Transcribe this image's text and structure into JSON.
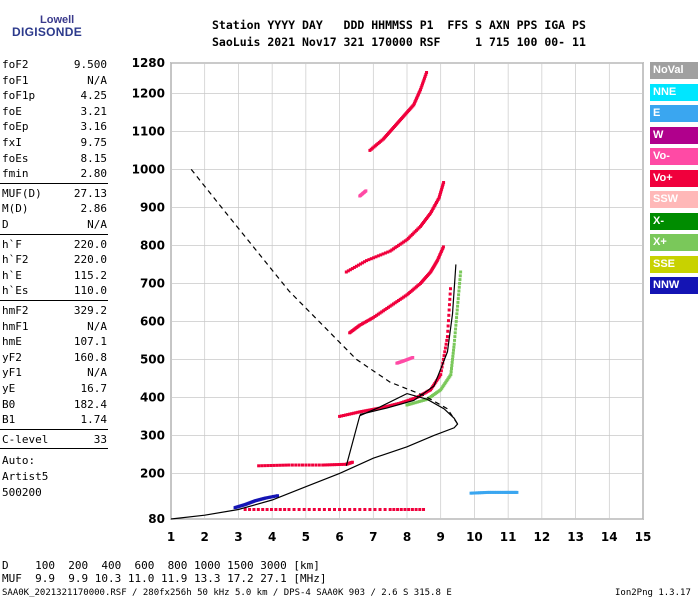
{
  "logo": {
    "top": "Lowell",
    "bottom": "DIGISONDE"
  },
  "header": {
    "line1": "Station YYYY DAY   DDD HHMMSS P1  FFS S AXN PPS IGA PS",
    "line2": "SaoLuis 2021 Nov17 321 170000 RSF     1 715 100 00- 11"
  },
  "params_group1": [
    {
      "k": "foF2",
      "v": "9.500"
    },
    {
      "k": "foF1",
      "v": "N/A"
    },
    {
      "k": "foF1p",
      "v": "4.25"
    },
    {
      "k": "foE",
      "v": "3.21"
    },
    {
      "k": "foEp",
      "v": "3.16"
    },
    {
      "k": "fxI",
      "v": "9.75"
    },
    {
      "k": "foEs",
      "v": "8.15"
    },
    {
      "k": "fmin",
      "v": "2.80"
    }
  ],
  "params_group2": [
    {
      "k": "MUF(D)",
      "v": "27.13"
    },
    {
      "k": "M(D)",
      "v": "2.86"
    },
    {
      "k": "D",
      "v": "N/A"
    }
  ],
  "params_group3": [
    {
      "k": "h`F",
      "v": "220.0"
    },
    {
      "k": "h`F2",
      "v": "220.0"
    },
    {
      "k": "h`E",
      "v": "115.2"
    },
    {
      "k": "h`Es",
      "v": "110.0"
    }
  ],
  "params_group4": [
    {
      "k": "hmF2",
      "v": "329.2"
    },
    {
      "k": "hmF1",
      "v": "N/A"
    },
    {
      "k": "hmE",
      "v": "107.1"
    },
    {
      "k": "yF2",
      "v": "160.8"
    },
    {
      "k": "yF1",
      "v": "N/A"
    },
    {
      "k": "yE",
      "v": "16.7"
    },
    {
      "k": "B0",
      "v": "182.4"
    },
    {
      "k": "B1",
      "v": "1.74"
    }
  ],
  "clevel": {
    "k": "C-level",
    "v": "33"
  },
  "auto": [
    "Auto:",
    "Artist5",
    "500200"
  ],
  "legend": [
    {
      "label": "NoVal",
      "color": "#a0a0a0"
    },
    {
      "label": "NNE",
      "color": "#00e6ff"
    },
    {
      "label": "E",
      "color": "#3aa6f0"
    },
    {
      "label": "W",
      "color": "#b0008c"
    },
    {
      "label": "Vo-",
      "color": "#ff4aa5"
    },
    {
      "label": "Vo+",
      "color": "#f0003c"
    },
    {
      "label": "SSW",
      "color": "#ffb8b8"
    },
    {
      "label": "X-",
      "color": "#008c00"
    },
    {
      "label": "X+",
      "color": "#7ac85a"
    },
    {
      "label": "SSE",
      "color": "#c8d200"
    },
    {
      "label": "NNW",
      "color": "#1414b4"
    }
  ],
  "muf_table": {
    "line1": "D    100  200  400  600  800 1000 1500 3000 [km]",
    "line2": "MUF  9.9  9.9 10.3 11.0 11.9 13.3 17.2 27.1 [MHz]"
  },
  "footer": {
    "left": "SAA0K_2021321170000.RSF / 280fx256h 50 kHz 5.0 km / DPS-4 SAA0K 903 / 2.6 S 315.8 E",
    "right": "Ion2Png 1.3.17"
  },
  "chart_data": {
    "type": "scatter",
    "xlim": [
      1,
      15
    ],
    "ylim": [
      80,
      1280
    ],
    "x_ticks": [
      1,
      2,
      3,
      4,
      5,
      6,
      7,
      8,
      9,
      10,
      11,
      12,
      13,
      14,
      15
    ],
    "y_ticks": [
      80,
      200,
      300,
      400,
      500,
      600,
      700,
      800,
      900,
      1000,
      1100,
      1200,
      1280
    ],
    "grid": true,
    "series": [
      {
        "color": "#f0003c",
        "points": [
          [
            6.3,
            570
          ],
          [
            6.6,
            590
          ],
          [
            7.0,
            610
          ],
          [
            7.5,
            640
          ],
          [
            8.0,
            670
          ],
          [
            8.4,
            700
          ],
          [
            8.7,
            730
          ],
          [
            8.9,
            760
          ],
          [
            9.1,
            800
          ]
        ]
      },
      {
        "color": "#f0003c",
        "points": [
          [
            6.2,
            730
          ],
          [
            6.8,
            760
          ],
          [
            7.5,
            785
          ],
          [
            8.0,
            815
          ],
          [
            8.4,
            850
          ],
          [
            8.7,
            885
          ],
          [
            8.95,
            925
          ],
          [
            9.1,
            970
          ]
        ]
      },
      {
        "color": "#f0003c",
        "points": [
          [
            6.9,
            1050
          ],
          [
            7.3,
            1080
          ],
          [
            7.6,
            1110
          ],
          [
            7.9,
            1140
          ],
          [
            8.2,
            1170
          ],
          [
            8.4,
            1210
          ],
          [
            8.6,
            1260
          ]
        ]
      },
      {
        "color": "#f0003c",
        "points": [
          [
            6.0,
            350
          ],
          [
            6.6,
            362
          ],
          [
            7.2,
            372
          ],
          [
            7.8,
            385
          ],
          [
            8.3,
            400
          ],
          [
            8.7,
            420
          ],
          [
            9.0,
            460
          ],
          [
            9.2,
            560
          ],
          [
            9.3,
            700
          ]
        ]
      },
      {
        "color": "#f0003c",
        "points": [
          [
            3.6,
            220
          ],
          [
            4.5,
            222
          ],
          [
            5.5,
            222
          ],
          [
            6.2,
            224
          ],
          [
            6.4,
            230
          ]
        ]
      },
      {
        "color": "#f0003c",
        "points": [
          [
            3.2,
            105
          ],
          [
            4.5,
            105
          ],
          [
            6.0,
            105
          ],
          [
            7.5,
            105
          ],
          [
            8.6,
            105
          ]
        ]
      },
      {
        "color": "#7ac85a",
        "points": [
          [
            8.0,
            380
          ],
          [
            8.6,
            395
          ],
          [
            9.0,
            420
          ],
          [
            9.3,
            460
          ],
          [
            9.4,
            540
          ],
          [
            9.5,
            640
          ],
          [
            9.6,
            740
          ]
        ]
      },
      {
        "color": "#1414b4",
        "points": [
          [
            2.9,
            110
          ],
          [
            3.2,
            118
          ],
          [
            3.5,
            128
          ],
          [
            3.8,
            135
          ],
          [
            4.2,
            142
          ]
        ]
      },
      {
        "color": "#3aa6f0",
        "points": [
          [
            9.9,
            148
          ],
          [
            10.4,
            150
          ],
          [
            10.9,
            150
          ],
          [
            11.3,
            150
          ]
        ]
      },
      {
        "color": "#ff4aa5",
        "points": [
          [
            7.7,
            490
          ],
          [
            7.9,
            496
          ],
          [
            8.2,
            506
          ]
        ]
      },
      {
        "color": "#ff4aa5",
        "points": [
          [
            6.6,
            930
          ],
          [
            6.8,
            945
          ]
        ]
      }
    ],
    "profile_solid": [
      [
        1,
        80
      ],
      [
        2,
        90
      ],
      [
        3,
        105
      ],
      [
        4,
        130
      ],
      [
        5,
        165
      ],
      [
        6,
        200
      ],
      [
        7,
        240
      ],
      [
        8,
        270
      ],
      [
        8.8,
        300
      ],
      [
        9.4,
        320
      ],
      [
        9.5,
        330
      ],
      [
        9.4,
        345
      ],
      [
        9.1,
        370
      ],
      [
        8.6,
        395
      ],
      [
        8.0,
        410
      ],
      [
        7.2,
        375
      ],
      [
        6.6,
        352
      ],
      [
        6.2,
        220
      ]
    ],
    "profile_solid2": [
      [
        6.6,
        355
      ],
      [
        7.4,
        372
      ],
      [
        8.2,
        392
      ],
      [
        8.8,
        430
      ],
      [
        9.2,
        520
      ],
      [
        9.35,
        620
      ],
      [
        9.45,
        750
      ]
    ],
    "profile_dashed": [
      [
        1.6,
        1000
      ],
      [
        2.5,
        900
      ],
      [
        3.5,
        790
      ],
      [
        4.5,
        680
      ],
      [
        5.5,
        590
      ],
      [
        6.5,
        500
      ],
      [
        7.5,
        440
      ],
      [
        8.5,
        405
      ],
      [
        9.2,
        370
      ],
      [
        9.5,
        330
      ]
    ]
  }
}
